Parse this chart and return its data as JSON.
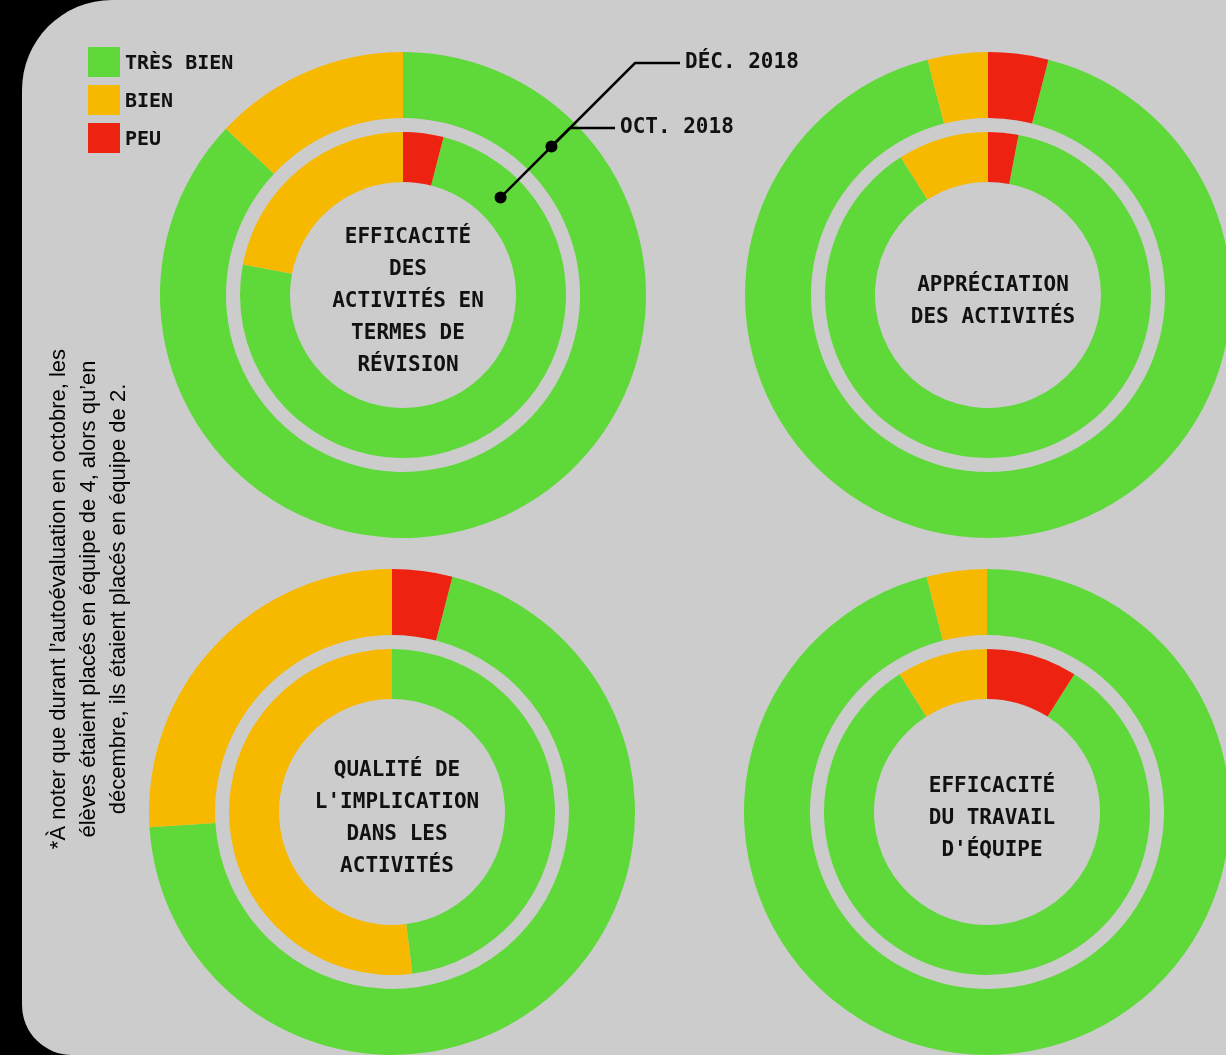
{
  "chart_data": [
    {
      "type": "donut",
      "title": "EFFICACITÉ\nDES\nACTIVITÉS EN\nTERMES DE\nRÉVISION",
      "categories": [
        "TRÈS BIEN",
        "BIEN",
        "PEU"
      ],
      "colors": [
        "#5fd93a",
        "#f7b900",
        "#ee2211"
      ],
      "legend": "top left",
      "series": [
        {
          "name": "DÉC. 2018",
          "values": [
            87,
            13,
            0
          ]
        },
        {
          "name": "OCT. 2018",
          "values": [
            74,
            22,
            4
          ]
        }
      ],
      "annotations": [
        "*À noter que durant l’autoévaluation en octobre, les\nélèves  étaient placés en équipe de 4, alors qu’en\ndécembre, ils étaient placés en équipe de 2."
      ]
    },
    {
      "type": "donut",
      "title": "APPRÉCIATION\nDES ACTIVITÉS",
      "categories": [
        null,
        null,
        null
      ],
      "colors": [
        "#5fd93a",
        "#f7b900",
        "#ee2211"
      ],
      "series": [
        {
          "values": [
            92,
            4,
            4
          ]
        },
        {
          "values": [
            88,
            9,
            3
          ]
        }
      ]
    },
    {
      "type": "donut",
      "title": "QUALITÉ DE\nL'IMPLICATION\nDANS LES\nACTIVITÉS",
      "categories": [
        null,
        null,
        null
      ],
      "colors": [
        "#5fd93a",
        "#f7b900",
        "#ee2211"
      ],
      "series": [
        {
          "values": [
            70,
            26,
            4
          ]
        },
        {
          "values": [
            48,
            52,
            0
          ]
        }
      ]
    },
    {
      "type": "donut",
      "title": "EFFICACITÉ\nDU TRAVAIL\nD'ÉQUIPE",
      "categories": [
        null,
        null,
        null
      ],
      "colors": [
        "#5fd93a",
        "#f7b900",
        "#ee2211"
      ],
      "series": [
        {
          "values": [
            96,
            4,
            0
          ]
        },
        {
          "values": [
            82,
            9,
            9
          ]
        }
      ]
    }
  ]
}
